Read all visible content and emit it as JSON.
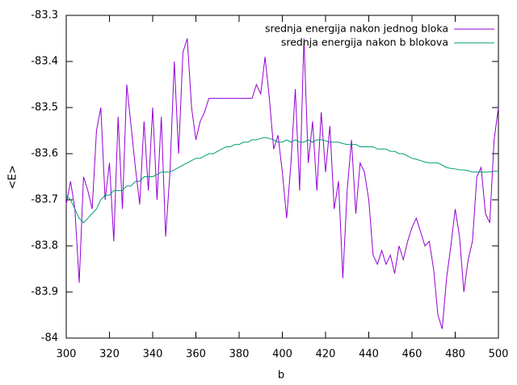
{
  "chart_data": {
    "type": "line",
    "xlabel": "b",
    "ylabel": "<E>",
    "x": [
      300,
      302,
      304,
      306,
      308,
      310,
      312,
      314,
      316,
      318,
      320,
      322,
      324,
      326,
      328,
      330,
      332,
      334,
      336,
      338,
      340,
      342,
      344,
      346,
      348,
      350,
      352,
      354,
      356,
      358,
      360,
      362,
      364,
      366,
      368,
      370,
      372,
      374,
      376,
      378,
      380,
      382,
      384,
      386,
      388,
      390,
      392,
      394,
      396,
      398,
      400,
      402,
      404,
      406,
      408,
      410,
      412,
      414,
      416,
      418,
      420,
      422,
      424,
      426,
      428,
      430,
      432,
      434,
      436,
      438,
      440,
      442,
      444,
      446,
      448,
      450,
      452,
      454,
      456,
      458,
      460,
      462,
      464,
      466,
      468,
      470,
      472,
      474,
      476,
      478,
      480,
      482,
      484,
      486,
      488,
      490,
      492,
      494,
      496,
      498,
      500
    ],
    "series": [
      {
        "name": "srednja energija nakon jednog bloka",
        "color": "#9400d3",
        "values": [
          -83.71,
          -83.66,
          -83.72,
          -83.88,
          -83.65,
          -83.68,
          -83.72,
          -83.55,
          -83.5,
          -83.7,
          -83.62,
          -83.79,
          -83.52,
          -83.72,
          -83.45,
          -83.54,
          -83.63,
          -83.71,
          -83.53,
          -83.68,
          -83.5,
          -83.7,
          -83.52,
          -83.78,
          -83.64,
          -83.4,
          -83.6,
          -83.38,
          -83.35,
          -83.5,
          -83.57,
          -83.53,
          -83.51,
          -83.48,
          -83.48,
          -83.48,
          -83.48,
          -83.48,
          -83.48,
          -83.48,
          -83.48,
          -83.48,
          -83.48,
          -83.48,
          -83.45,
          -83.47,
          -83.39,
          -83.48,
          -83.59,
          -83.56,
          -83.64,
          -83.74,
          -83.62,
          -83.46,
          -83.68,
          -83.35,
          -83.62,
          -83.53,
          -83.68,
          -83.51,
          -83.64,
          -83.54,
          -83.72,
          -83.66,
          -83.87,
          -83.68,
          -83.57,
          -83.73,
          -83.62,
          -83.64,
          -83.7,
          -83.82,
          -83.84,
          -83.81,
          -83.84,
          -83.82,
          -83.86,
          -83.8,
          -83.83,
          -83.79,
          -83.76,
          -83.74,
          -83.77,
          -83.8,
          -83.79,
          -83.85,
          -83.95,
          -83.98,
          -83.87,
          -83.8,
          -83.72,
          -83.78,
          -83.9,
          -83.83,
          -83.79,
          -83.65,
          -83.63,
          -83.73,
          -83.75,
          -83.57,
          -83.5
        ]
      },
      {
        "name": "srednja energija nakon b blokova",
        "color": "#009e73",
        "values": [
          -83.69,
          -83.7,
          -83.72,
          -83.74,
          -83.75,
          -83.74,
          -83.73,
          -83.72,
          -83.7,
          -83.69,
          -83.69,
          -83.68,
          -83.68,
          -83.68,
          -83.67,
          -83.67,
          -83.66,
          -83.66,
          -83.65,
          -83.65,
          -83.65,
          -83.645,
          -83.64,
          -83.64,
          -83.64,
          -83.635,
          -83.63,
          -83.625,
          -83.62,
          -83.615,
          -83.61,
          -83.61,
          -83.605,
          -83.6,
          -83.6,
          -83.595,
          -83.59,
          -83.585,
          -83.585,
          -83.58,
          -83.58,
          -83.575,
          -83.575,
          -83.57,
          -83.57,
          -83.567,
          -83.565,
          -83.567,
          -83.57,
          -83.575,
          -83.575,
          -83.57,
          -83.575,
          -83.57,
          -83.575,
          -83.575,
          -83.57,
          -83.575,
          -83.57,
          -83.57,
          -83.572,
          -83.575,
          -83.575,
          -83.575,
          -83.578,
          -83.58,
          -83.58,
          -83.58,
          -83.585,
          -83.585,
          -83.585,
          -83.585,
          -83.59,
          -83.59,
          -83.59,
          -83.595,
          -83.595,
          -83.6,
          -83.6,
          -83.605,
          -83.61,
          -83.612,
          -83.615,
          -83.618,
          -83.62,
          -83.62,
          -83.62,
          -83.625,
          -83.63,
          -83.632,
          -83.633,
          -83.635,
          -83.635,
          -83.637,
          -83.64,
          -83.64,
          -83.64,
          -83.64,
          -83.64,
          -83.638,
          -83.638
        ]
      }
    ],
    "xlim": [
      300,
      500
    ],
    "xticks": [
      300,
      320,
      340,
      360,
      380,
      400,
      420,
      440,
      460,
      480,
      500
    ],
    "ylim": [
      -84,
      -83.3
    ],
    "yticks": [
      -84,
      -83.9,
      -83.8,
      -83.7,
      -83.6,
      -83.5,
      -83.4,
      -83.3
    ],
    "legend": "top-right"
  }
}
